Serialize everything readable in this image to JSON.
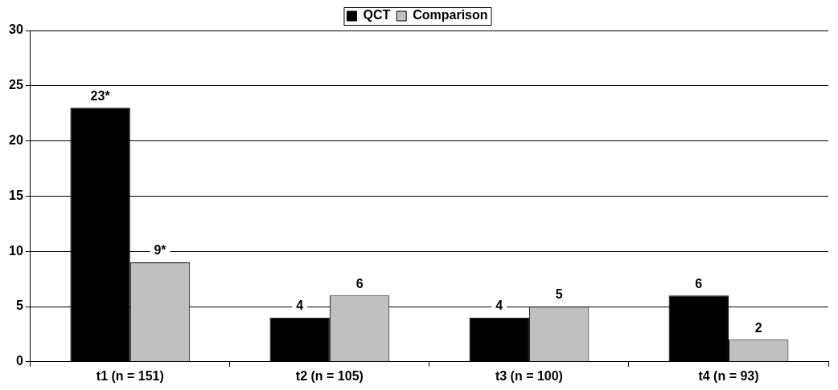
{
  "chart_data": {
    "type": "bar",
    "categories": [
      "t1 (n = 151)",
      "t2 (n = 105)",
      "t3 (n = 100)",
      "t4 (n = 93)"
    ],
    "series": [
      {
        "name": "QCT",
        "color": "#000000",
        "values": [
          23,
          4,
          4,
          6
        ],
        "value_labels": [
          "23*",
          "4",
          "4",
          "6"
        ]
      },
      {
        "name": "Comparison",
        "color": "#c0c0c0",
        "values": [
          9,
          6,
          5,
          2
        ],
        "value_labels": [
          "9*",
          "6",
          "5",
          "2"
        ]
      }
    ],
    "ylim": [
      0,
      30
    ],
    "yticks": [
      0,
      5,
      10,
      15,
      20,
      25,
      30
    ],
    "grid": "y",
    "legend": "top"
  }
}
